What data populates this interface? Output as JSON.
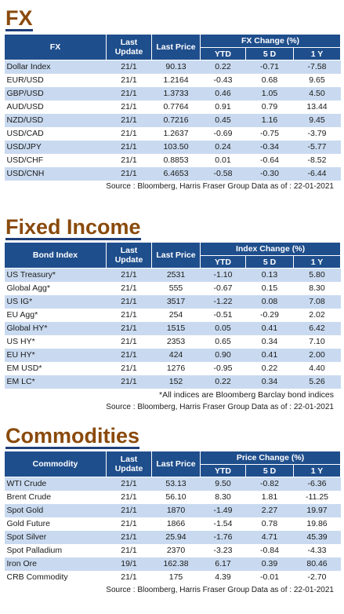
{
  "fx": {
    "title": "FX",
    "headers": {
      "name": "FX",
      "update": "Last Update",
      "price": "Last Price",
      "group": "FX Change (%)",
      "ytd": "YTD",
      "d5": "5 D",
      "y1": "1 Y"
    },
    "rows": [
      [
        "Dollar Index",
        "21/1",
        "90.13",
        "0.22",
        "-0.71",
        "-7.58"
      ],
      [
        "EUR/USD",
        "21/1",
        "1.2164",
        "-0.43",
        "0.68",
        "9.65"
      ],
      [
        "GBP/USD",
        "21/1",
        "1.3733",
        "0.46",
        "1.05",
        "4.50"
      ],
      [
        "AUD/USD",
        "21/1",
        "0.7764",
        "0.91",
        "0.79",
        "13.44"
      ],
      [
        "NZD/USD",
        "21/1",
        "0.7216",
        "0.45",
        "1.16",
        "9.45"
      ],
      [
        "USD/CAD",
        "21/1",
        "1.2637",
        "-0.69",
        "-0.75",
        "-3.79"
      ],
      [
        "USD/JPY",
        "21/1",
        "103.50",
        "0.24",
        "-0.34",
        "-5.77"
      ],
      [
        "USD/CHF",
        "21/1",
        "0.8853",
        "0.01",
        "-0.64",
        "-8.52"
      ],
      [
        "USD/CNH",
        "21/1",
        "6.4653",
        "-0.58",
        "-0.30",
        "-6.44"
      ]
    ],
    "source": "Source : Bloomberg, Harris Fraser Group Data as of : 22-01-2021"
  },
  "fixed_income": {
    "title": "Fixed Income",
    "headers": {
      "name": "Bond Index",
      "update": "Last Update",
      "price": "Last Price",
      "group": "Index Change (%)",
      "ytd": "YTD",
      "d5": "5 D",
      "y1": "1 Y"
    },
    "rows": [
      [
        "US Treasury*",
        "21/1",
        "2531",
        "-1.10",
        "0.13",
        "5.80"
      ],
      [
        "Global Agg*",
        "21/1",
        "555",
        "-0.67",
        "0.15",
        "8.30"
      ],
      [
        "US IG*",
        "21/1",
        "3517",
        "-1.22",
        "0.08",
        "7.08"
      ],
      [
        "EU Agg*",
        "21/1",
        "254",
        "-0.51",
        "-0.29",
        "2.02"
      ],
      [
        "Global HY*",
        "21/1",
        "1515",
        "0.05",
        "0.41",
        "6.42"
      ],
      [
        "US HY*",
        "21/1",
        "2353",
        "0.65",
        "0.34",
        "7.10"
      ],
      [
        "EU HY*",
        "21/1",
        "424",
        "0.90",
        "0.41",
        "2.00"
      ],
      [
        "EM USD*",
        "21/1",
        "1276",
        "-0.95",
        "0.22",
        "4.40"
      ],
      [
        "EM LC*",
        "21/1",
        "152",
        "0.22",
        "0.34",
        "5.26"
      ]
    ],
    "note": "*All indices are Bloomberg Barclay bond indices",
    "source": "Source : Bloomberg, Harris Fraser Group Data as of : 22-01-2021"
  },
  "commodities": {
    "title": "Commodities",
    "headers": {
      "name": "Commodity",
      "update": "Last Update",
      "price": "Last Price",
      "group": "Price Change (%)",
      "ytd": "YTD",
      "d5": "5 D",
      "y1": "1 Y"
    },
    "rows": [
      [
        "WTI Crude",
        "21/1",
        "53.13",
        "9.50",
        "-0.82",
        "-6.36"
      ],
      [
        "Brent Crude",
        "21/1",
        "56.10",
        "8.30",
        "1.81",
        "-11.25"
      ],
      [
        "Spot Gold",
        "21/1",
        "1870",
        "-1.49",
        "2.27",
        "19.97"
      ],
      [
        "Gold Future",
        "21/1",
        "1866",
        "-1.54",
        "0.78",
        "19.86"
      ],
      [
        "Spot Silver",
        "21/1",
        "25.94",
        "-1.76",
        "4.71",
        "45.39"
      ],
      [
        "Spot Palladium",
        "21/1",
        "2370",
        "-3.23",
        "-0.84",
        "-4.33"
      ],
      [
        "Iron Ore",
        "19/1",
        "162.38",
        "6.17",
        "0.39",
        "80.46"
      ],
      [
        "CRB Commodity",
        "21/1",
        "175",
        "4.39",
        "-0.01",
        "-2.70"
      ]
    ],
    "source": "Source : Bloomberg, Harris Fraser Group Data as of : 22-01-2021"
  }
}
